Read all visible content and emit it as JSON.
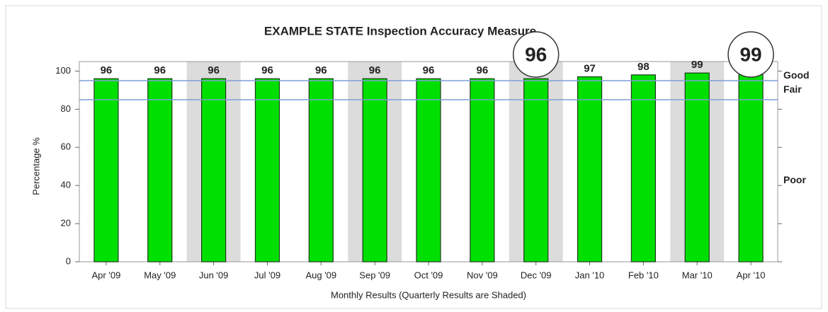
{
  "chart_data": {
    "type": "bar",
    "title": "EXAMPLE  STATE    Inspection Accuracy Measure",
    "y_label": "Percentage %",
    "x_label": "Monthly Results (Quarterly Results are Shaded)",
    "categories": [
      "Apr '09",
      "May '09",
      "Jun '09",
      "Jul '09",
      "Aug '09",
      "Sep '09",
      "Oct '09",
      "Nov '09",
      "Dec '09",
      "Jan '10",
      "Feb '10",
      "Mar '10",
      "Apr '10"
    ],
    "values": [
      96,
      96,
      96,
      96,
      96,
      96,
      96,
      96,
      96,
      97,
      98,
      99,
      99
    ],
    "shaded": [
      false,
      false,
      true,
      false,
      false,
      true,
      false,
      false,
      true,
      false,
      false,
      true,
      false
    ],
    "color": "#00e000",
    "shade_color": "#dcdcdc",
    "ylim": [
      0,
      105
    ],
    "yticks": [
      0,
      20,
      40,
      60,
      80,
      100
    ],
    "reference_lines": [
      95,
      85
    ],
    "reference_color": "#7f9fd8",
    "zones": [
      {
        "label": "Good",
        "color": "#2db52d"
      },
      {
        "label": "Fair",
        "color": "#e8b020"
      },
      {
        "label": "Poor",
        "color": "#c8102e"
      }
    ],
    "annotations": [
      {
        "text": "96",
        "category": "Dec '09"
      },
      {
        "text": "99",
        "category": "Apr '10"
      }
    ]
  }
}
